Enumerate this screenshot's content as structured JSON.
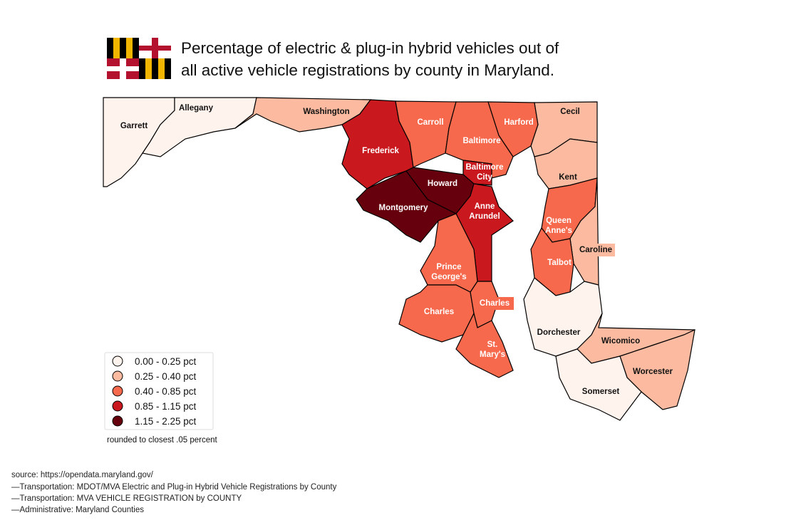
{
  "title": [
    "Percentage of electric & plug-in hybrid vehicles out of",
    "all active vehicle registrations by county in Maryland."
  ],
  "legend": {
    "items": [
      {
        "label": "0.00 - 0.25 pct",
        "color": "#fff3ee"
      },
      {
        "label": "0.25 - 0.40 pct",
        "color": "#fcbba1"
      },
      {
        "label": "0.40 - 0.85 pct",
        "color": "#f6694c"
      },
      {
        "label": "0.85 - 1.15 pct",
        "color": "#c9191e"
      },
      {
        "label": "1.15 - 2.25 pct",
        "color": "#67000d"
      }
    ],
    "note": "rounded to closest .05 percent"
  },
  "counties": [
    {
      "label": [
        "Garrett"
      ],
      "color": "#fff3ee"
    },
    {
      "label": [
        "Allegany"
      ],
      "color": "#fff3ee"
    },
    {
      "label": [
        "Washington"
      ],
      "color": "#fcbba1"
    },
    {
      "label": [
        "Frederick"
      ],
      "color": "#c9191e"
    },
    {
      "label": [
        "Carroll"
      ],
      "color": "#f6694c"
    },
    {
      "label": [
        "Baltimore"
      ],
      "color": "#f6694c"
    },
    {
      "label": [
        "Harford"
      ],
      "color": "#f6694c"
    },
    {
      "label": [
        "Cecil"
      ],
      "color": "#fcbba1"
    },
    {
      "label": [
        "Baltimore",
        "City"
      ],
      "color": "#c9191e"
    },
    {
      "label": [
        "Howard"
      ],
      "color": "#67000d"
    },
    {
      "label": [
        "Montgomery"
      ],
      "color": "#67000d"
    },
    {
      "label": [
        "Anne",
        "Arundel"
      ],
      "color": "#c9191e"
    },
    {
      "label": [
        "Prince",
        "George's"
      ],
      "color": "#f6694c"
    },
    {
      "label": [
        "Charles"
      ],
      "color": "#f6694c"
    },
    {
      "label": [
        "Charles"
      ],
      "color": "#f6694c"
    },
    {
      "label": [
        "St.",
        "Mary's"
      ],
      "color": "#f6694c"
    },
    {
      "label": [
        "Kent"
      ],
      "color": "#fcbba1"
    },
    {
      "label": [
        "Queen",
        "Anne's"
      ],
      "color": "#f6694c"
    },
    {
      "label": [
        "Caroline"
      ],
      "color": "#fcbba1"
    },
    {
      "label": [
        "Talbot"
      ],
      "color": "#f6694c"
    },
    {
      "label": [
        "Dorchester"
      ],
      "color": "#fff3ee"
    },
    {
      "label": [
        "Wicomico"
      ],
      "color": "#fcbba1"
    },
    {
      "label": [
        "Worcester"
      ],
      "color": "#fcbba1"
    },
    {
      "label": [
        "Somerset"
      ],
      "color": "#fff3ee"
    }
  ],
  "source": {
    "heading": "source: https://opendata.maryland.gov/",
    "lines": [
      "—Transportation: MDOT/MVA Electric and Plug-in Hybrid Vehicle Registrations by County",
      "—Transportation: MVA VEHICLE REGISTRATION by COUNTY",
      "—Administrative: Maryland Counties"
    ]
  }
}
